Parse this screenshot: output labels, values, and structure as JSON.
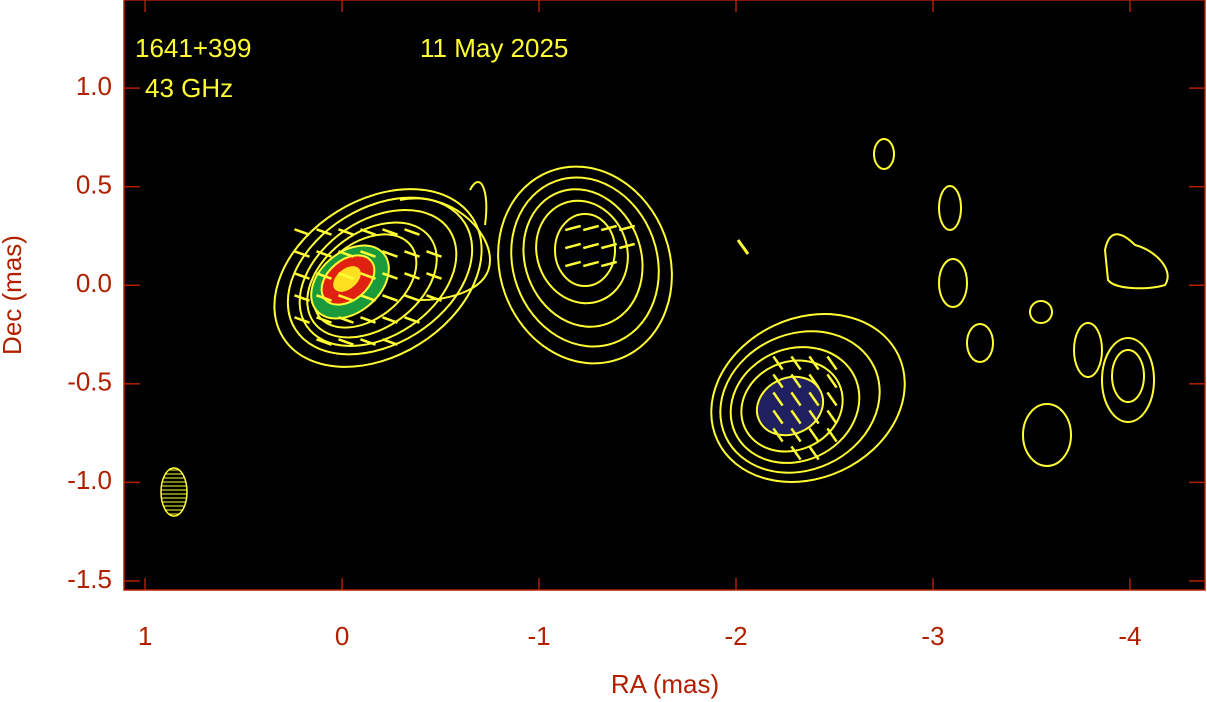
{
  "chart_data": {
    "type": "image-map",
    "annotations": [
      "1641+399",
      "43 GHz",
      "11 May 2025"
    ],
    "xlabel": "RA (mas)",
    "ylabel": "Dec (mas)",
    "xlim": [
      1.107,
      -4.381
    ],
    "xticks": [
      1,
      0,
      -1,
      -2,
      -3,
      -4
    ],
    "ylim": [
      1.447,
      -1.546
    ],
    "yticks": [
      {
        "value": 1,
        "label": "1.0"
      },
      {
        "value": 0.5,
        "label": "0.5"
      },
      {
        "value": 0,
        "label": "0.0"
      },
      {
        "value": -0.5,
        "label": "-0.5"
      },
      {
        "value": -1,
        "label": "-1.0"
      },
      {
        "value": -1.5,
        "label": "-1.5"
      }
    ],
    "contour_color": "#ffff33",
    "axis_color": "#b02000",
    "background": "#000000"
  }
}
